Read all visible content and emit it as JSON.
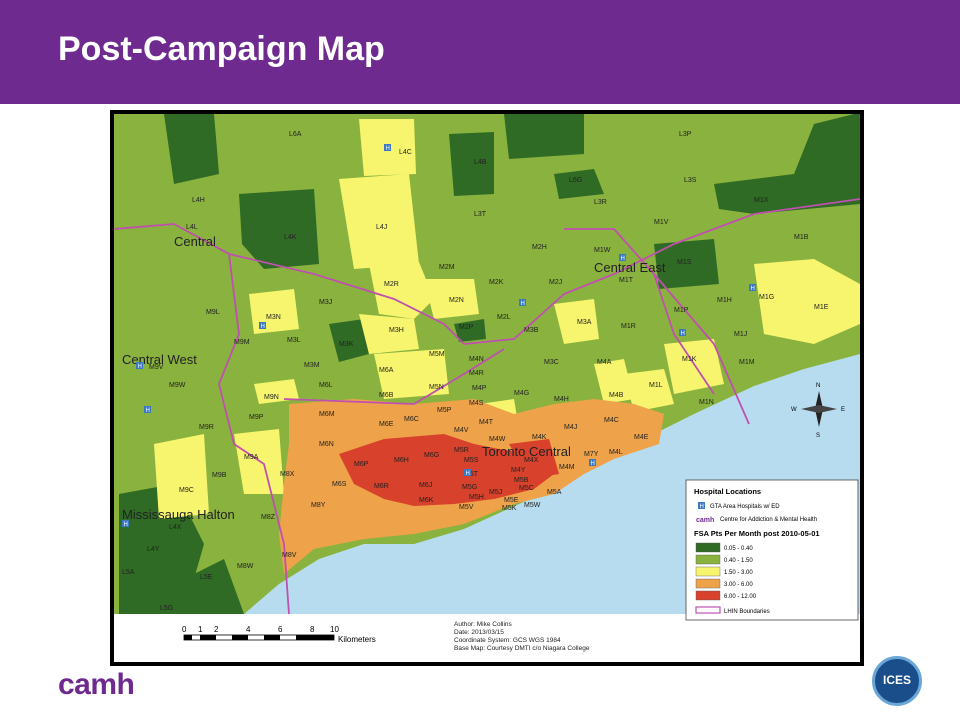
{
  "slide": {
    "title": "Post-Campaign Map",
    "logo_left": "camh",
    "logo_right": "ICES"
  },
  "colors": {
    "header": "#6e2a8e",
    "class_1": "#2f6b25",
    "class_2": "#8ab23e",
    "class_3": "#f7f56e",
    "class_4": "#eea24a",
    "class_5": "#d8412b",
    "lhin_boundary": "#c050b0",
    "lake": "#b8dcef"
  },
  "map": {
    "lhin_regions": [
      "Central",
      "Central East",
      "Central West",
      "Toronto Central",
      "Mississauga Halton"
    ],
    "fsa_labels": [
      "L6A",
      "L4C",
      "L4B",
      "L3P",
      "L3S",
      "L6G",
      "L3R",
      "L4H",
      "L4L",
      "L4K",
      "L4J",
      "L3T",
      "M1X",
      "M1V",
      "M1W",
      "M1B",
      "M2H",
      "M2M",
      "M2J",
      "M2K",
      "M1S",
      "M1T",
      "M2R",
      "M2N",
      "M3N",
      "M9L",
      "M3J",
      "M2P",
      "M2L",
      "M3B",
      "M3A",
      "M1R",
      "M1P",
      "M1H",
      "M1G",
      "M1E",
      "M9M",
      "M3L",
      "M3K",
      "M3H",
      "M6A",
      "M5M",
      "M4N",
      "M3C",
      "M4A",
      "M1K",
      "M1J",
      "M1M",
      "M9V",
      "M9W",
      "M3M",
      "M6L",
      "M6B",
      "M5N",
      "M4R",
      "M4P",
      "M4G",
      "M4H",
      "M4B",
      "M1L",
      "M1N",
      "M9N",
      "M6M",
      "M6E",
      "M5P",
      "M4S",
      "M4T",
      "M4C",
      "M9P",
      "M9R",
      "M6N",
      "M6C",
      "M5R",
      "M4V",
      "M4W",
      "M4K",
      "M4J",
      "M4E",
      "M9A",
      "M6H",
      "M6G",
      "M5S",
      "M4X",
      "M4M",
      "M7Y",
      "M4L",
      "M6P",
      "M6R",
      "M6J",
      "M5T",
      "M4Y",
      "M5B",
      "M9C",
      "M9B",
      "M8X",
      "M6S",
      "M6K",
      "M5G",
      "M5J",
      "M5C",
      "M5A",
      "M8Y",
      "M5H",
      "M5E",
      "M8Z",
      "M5V",
      "M5K",
      "M5W",
      "M8W",
      "M8V",
      "L5A",
      "L5E",
      "L5G",
      "L4Y",
      "L4X"
    ],
    "hospital_symbol": "H",
    "scale_bar_ticks": [
      "0",
      "1",
      "2",
      "4",
      "6",
      "8",
      "10"
    ],
    "scale_bar_unit": "Kilometers",
    "metadata": {
      "author": "Author: Mike Collins",
      "date": "Date: 2013/03/15",
      "coordinate_system": "Coordinate System: GCS WGS 1984",
      "base_map": "Base Map: Courtesy DMTI c/o Niagara College"
    },
    "legend": {
      "section1_title": "Hospital Locations",
      "hospital_item": "GTA Area Hospitals w/ ED",
      "camh_item_mark": "camh",
      "camh_item": "Centre for Addiction & Mental Health",
      "section2_title": "FSA Pts Per Month post 2010-05-01",
      "classes": [
        {
          "label": "0.05 - 0.40",
          "color": "#2f6b25"
        },
        {
          "label": "0.40 - 1.50",
          "color": "#8ab23e"
        },
        {
          "label": "1.50 - 3.00",
          "color": "#f7f56e"
        },
        {
          "label": "3.00 - 6.00",
          "color": "#eea24a"
        },
        {
          "label": "6.00 - 12.00",
          "color": "#d8412b"
        }
      ],
      "lhin_item": "LHIN Boundaries"
    },
    "compass_directions": [
      "N",
      "S",
      "E",
      "W"
    ]
  }
}
